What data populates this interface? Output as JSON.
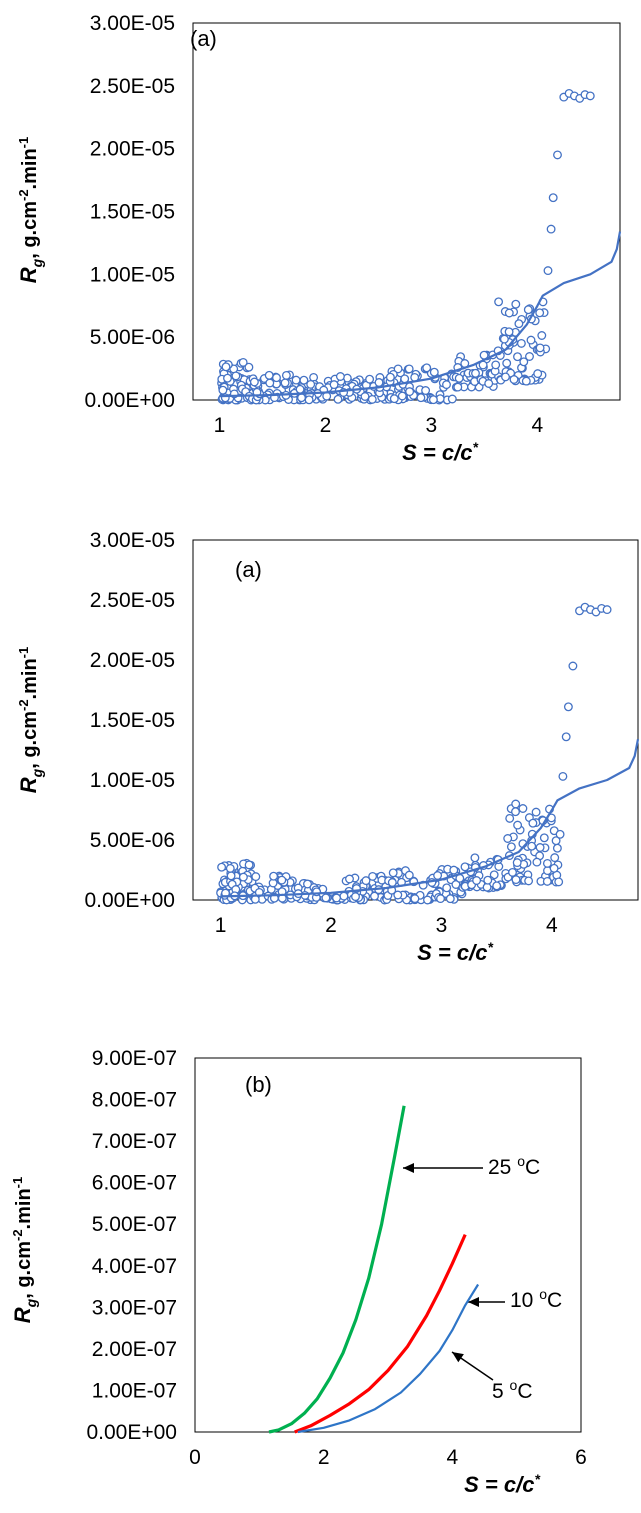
{
  "chart_data": [
    {
      "type": "scatter",
      "panel_label": "(a)",
      "xlabel_parts": [
        "S",
        " = ",
        "c",
        "/",
        "c",
        "*"
      ],
      "ylabel_parts": [
        "R",
        "g",
        ", g.cm",
        "-2",
        ".min",
        "-1"
      ],
      "xlim": [
        0.75,
        4.78
      ],
      "ylim": [
        0,
        3e-05
      ],
      "x_ticks": [
        1,
        2,
        3,
        4
      ],
      "x_tick_labels": [
        "1",
        "2",
        "3",
        "4"
      ],
      "y_ticks": [
        0,
        5e-06,
        1e-05,
        1.5e-05,
        2e-05,
        2.5e-05,
        3e-05
      ],
      "y_tick_labels": [
        "0.00E+00",
        "5.00E-06",
        "1.00E-05",
        "1.50E-05",
        "2.00E-05",
        "2.50E-05",
        "3.00E-05"
      ],
      "grid": false,
      "series": [
        {
          "type": "scatter",
          "color": "#4472c4",
          "x": [
            4.1,
            4.13,
            4.15,
            4.19,
            4.25,
            4.3,
            4.35,
            4.4,
            4.45,
            4.5
          ],
          "y": [
            1.03e-05,
            1.36e-05,
            1.61e-05,
            1.95e-05,
            2.41e-05,
            2.44e-05,
            2.42e-05,
            2.4e-05,
            2.43e-05,
            2.42e-05
          ],
          "cloud": [
            {
              "x_start": 1.0,
              "x_end": 1.3,
              "count": 70,
              "y_min": 0.0,
              "y_max": 3.1e-06
            },
            {
              "x_start": 1.3,
              "x_end": 2.5,
              "count": 140,
              "y_min": 0.0,
              "y_max": 2e-06
            },
            {
              "x_start": 2.5,
              "x_end": 3.2,
              "count": 80,
              "y_min": 0.0,
              "y_max": 2.6e-06
            },
            {
              "x_start": 3.2,
              "x_end": 3.6,
              "count": 45,
              "y_min": 1e-06,
              "y_max": 3.6e-06
            },
            {
              "x_start": 3.6,
              "x_end": 4.08,
              "count": 70,
              "y_min": 1.5e-06,
              "y_max": 8e-06
            }
          ]
        },
        {
          "type": "line",
          "color": "#4472c4",
          "x": [
            1.0,
            1.5,
            2.0,
            2.5,
            3.0,
            3.4,
            3.7,
            3.9,
            4.0,
            4.05,
            4.25,
            4.5,
            4.7,
            4.75,
            4.78
          ],
          "y": [
            3e-07,
            4e-07,
            6e-07,
            1e-06,
            1.7e-06,
            2.8e-06,
            4e-06,
            6e-06,
            7.5e-06,
            8.3e-06,
            9.3e-06,
            1e-05,
            1.1e-05,
            1.2e-05,
            1.34e-05
          ]
        }
      ]
    },
    {
      "type": "scatter",
      "panel_label": "(a)",
      "xlabel_parts": [
        "S",
        " = ",
        "c",
        "/",
        "c",
        "*"
      ],
      "ylabel_parts": [
        "R",
        "g",
        ", g.cm",
        "-2",
        ".min",
        "-1"
      ],
      "xlim": [
        0.75,
        4.78
      ],
      "ylim": [
        0,
        3e-05
      ],
      "x_ticks": [
        1,
        2,
        3,
        4
      ],
      "x_tick_labels": [
        "1",
        "2",
        "3",
        "4"
      ],
      "y_ticks": [
        0,
        5e-06,
        1e-05,
        1.5e-05,
        2e-05,
        2.5e-05,
        3e-05
      ],
      "y_tick_labels": [
        "0.00E+00",
        "5.00E-06",
        "1.00E-05",
        "1.50E-05",
        "2.00E-05",
        "2.50E-05",
        "3.00E-05"
      ],
      "grid": false,
      "series": [
        {
          "type": "scatter",
          "color": "#4472c4",
          "x": [
            4.1,
            4.13,
            4.15,
            4.19,
            4.25,
            4.3,
            4.35,
            4.4,
            4.45,
            4.5
          ],
          "y": [
            1.03e-05,
            1.36e-05,
            1.61e-05,
            1.95e-05,
            2.41e-05,
            2.44e-05,
            2.42e-05,
            2.4e-05,
            2.43e-05,
            2.42e-05
          ],
          "cloud": [
            {
              "x_start": 1.0,
              "x_end": 1.3,
              "count": 70,
              "y_min": 0.0,
              "y_max": 3.1e-06
            },
            {
              "x_start": 1.3,
              "x_end": 2.5,
              "count": 140,
              "y_min": 0.0,
              "y_max": 2e-06
            },
            {
              "x_start": 2.5,
              "x_end": 3.2,
              "count": 80,
              "y_min": 0.0,
              "y_max": 2.6e-06
            },
            {
              "x_start": 3.2,
              "x_end": 3.6,
              "count": 45,
              "y_min": 1e-06,
              "y_max": 3.6e-06
            },
            {
              "x_start": 3.6,
              "x_end": 4.08,
              "count": 70,
              "y_min": 1.5e-06,
              "y_max": 8e-06
            }
          ]
        },
        {
          "type": "line",
          "color": "#4472c4",
          "x": [
            1.0,
            1.5,
            2.0,
            2.5,
            3.0,
            3.4,
            3.7,
            3.9,
            4.0,
            4.05,
            4.25,
            4.5,
            4.7,
            4.75,
            4.78
          ],
          "y": [
            3e-07,
            4e-07,
            6e-07,
            1e-06,
            1.7e-06,
            2.8e-06,
            4e-06,
            6e-06,
            7.5e-06,
            8.3e-06,
            9.3e-06,
            1e-05,
            1.1e-05,
            1.2e-05,
            1.34e-05
          ]
        }
      ]
    },
    {
      "type": "line",
      "panel_label": "(b)",
      "xlabel_parts": [
        "S",
        " = ",
        "c",
        "/",
        "c",
        "*"
      ],
      "ylabel_parts": [
        "R",
        "g",
        ", g.cm",
        "-2",
        ".min",
        "-1"
      ],
      "xlim": [
        0,
        6
      ],
      "ylim": [
        0,
        9e-07
      ],
      "x_ticks": [
        0,
        2,
        4,
        6
      ],
      "x_tick_labels": [
        "0",
        "2",
        "4",
        "6"
      ],
      "y_ticks": [
        0,
        1e-07,
        2e-07,
        3e-07,
        4e-07,
        5e-07,
        6e-07,
        7e-07,
        8e-07,
        9e-07
      ],
      "y_tick_labels": [
        "0.00E+00",
        "1.00E-07",
        "2.00E-07",
        "3.00E-07",
        "4.00E-07",
        "5.00E-07",
        "6.00E-07",
        "7.00E-07",
        "8.00E-07",
        "9.00E-07"
      ],
      "grid": false,
      "series": [
        {
          "color": "#00b050",
          "label_parts": [
            "25 ",
            "o",
            "C"
          ],
          "x": [
            1.15,
            1.3,
            1.5,
            1.7,
            1.9,
            2.1,
            2.3,
            2.5,
            2.7,
            2.9,
            3.1,
            3.25
          ],
          "y": [
            0.0,
            5e-09,
            2e-08,
            4.5e-08,
            8e-08,
            1.3e-07,
            1.9e-07,
            2.7e-07,
            3.7e-07,
            5e-07,
            6.6e-07,
            7.85e-07
          ]
        },
        {
          "color": "#ff0000",
          "label_parts": [
            "10 ",
            "o",
            "C"
          ],
          "x": [
            1.55,
            1.8,
            2.1,
            2.4,
            2.7,
            3.0,
            3.3,
            3.6,
            3.8,
            4.0,
            4.2
          ],
          "y": [
            0.0,
            1.5e-08,
            4e-08,
            6.8e-08,
            1.02e-07,
            1.48e-07,
            2.05e-07,
            2.8e-07,
            3.4e-07,
            4.05e-07,
            4.75e-07
          ]
        },
        {
          "color": "#2e75c7",
          "label_parts": [
            "5 ",
            "o",
            "C"
          ],
          "x": [
            1.6,
            2.0,
            2.4,
            2.8,
            3.2,
            3.5,
            3.8,
            4.0,
            4.2,
            4.4
          ],
          "y": [
            0.0,
            1e-08,
            2.8e-08,
            5.5e-08,
            9.5e-08,
            1.4e-07,
            1.95e-07,
            2.45e-07,
            3.05e-07,
            3.55e-07
          ]
        }
      ]
    }
  ]
}
